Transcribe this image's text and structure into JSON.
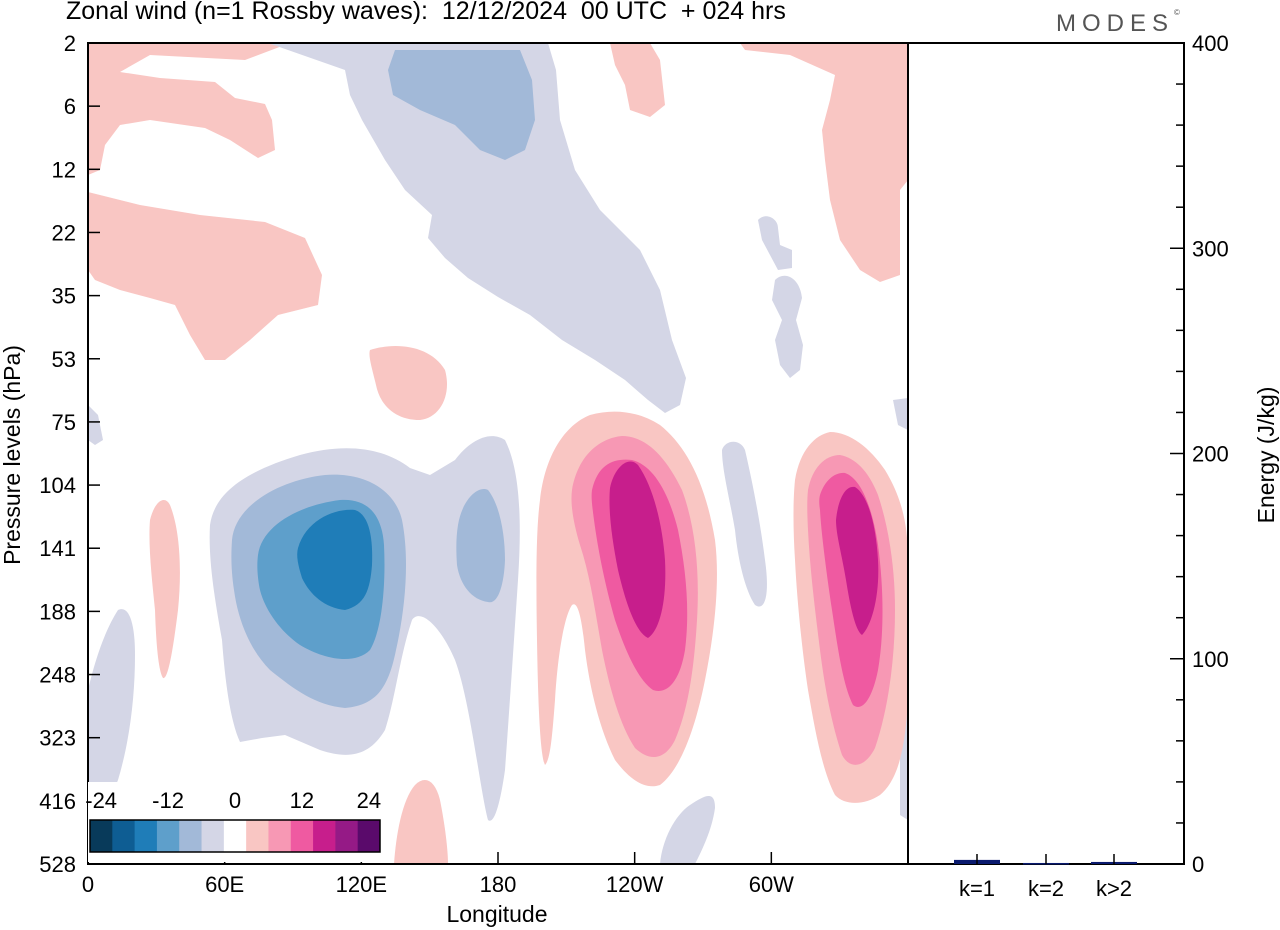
{
  "header": {
    "title": "Zonal wind (n=1 Rossby waves):  12/12/2024  00 UTC  + 024 hrs",
    "logo": "MODES",
    "logo_mark": "©"
  },
  "chart_data": [
    {
      "type": "heatmap",
      "xlabel": "Longitude",
      "ylabel": "Pressure levels (hPa)",
      "x_ticks": [
        "0",
        "60E",
        "120E",
        "180",
        "120W",
        "60W"
      ],
      "x_tick_values": [
        0,
        60,
        120,
        180,
        240,
        300
      ],
      "xlim": [
        0,
        360
      ],
      "y_ticks": [
        "2",
        "6",
        "12",
        "22",
        "35",
        "53",
        "75",
        "104",
        "141",
        "188",
        "248",
        "323",
        "416",
        "528"
      ],
      "colorbar": {
        "tick_labels": [
          "-24",
          "-12",
          "0",
          "12",
          "24"
        ],
        "levels": [
          -27,
          -21,
          -15,
          -9,
          -3,
          3,
          9,
          15,
          21,
          27
        ],
        "colors": [
          "#083a5a",
          "#0e5d93",
          "#1f7db8",
          "#5e9fcb",
          "#a2b9d8",
          "#d4d6e6",
          "#ffffff",
          "#f9c6c3",
          "#f798b4",
          "#ef5aa1",
          "#c71e8c",
          "#951a86",
          "#5a0a6b"
        ]
      },
      "features": [
        {
          "sign": "negative",
          "center_lon": 123,
          "center_level": "141",
          "peak": -21
        },
        {
          "sign": "negative",
          "center_lon": 172,
          "center_level": "141",
          "peak": -9
        },
        {
          "sign": "positive",
          "center_lon": 243,
          "center_level": "141",
          "peak": 21
        },
        {
          "sign": "positive",
          "center_lon": 338,
          "center_level": "141",
          "peak": 21
        },
        {
          "sign": "negative",
          "center_lon": 185,
          "center_level": "6",
          "peak": -9
        },
        {
          "sign": "positive",
          "center_lon": 40,
          "center_level": "35",
          "peak": 3
        }
      ]
    },
    {
      "type": "bar",
      "categories": [
        "k=1",
        "k=2",
        "k>2"
      ],
      "values": [
        2,
        0.5,
        1
      ],
      "ylabel": "Energy (J/kg)",
      "ylim": [
        0,
        400
      ],
      "y_ticks": [
        "0",
        "100",
        "200",
        "300",
        "400"
      ],
      "bar_color": "#0a1a6e"
    }
  ]
}
